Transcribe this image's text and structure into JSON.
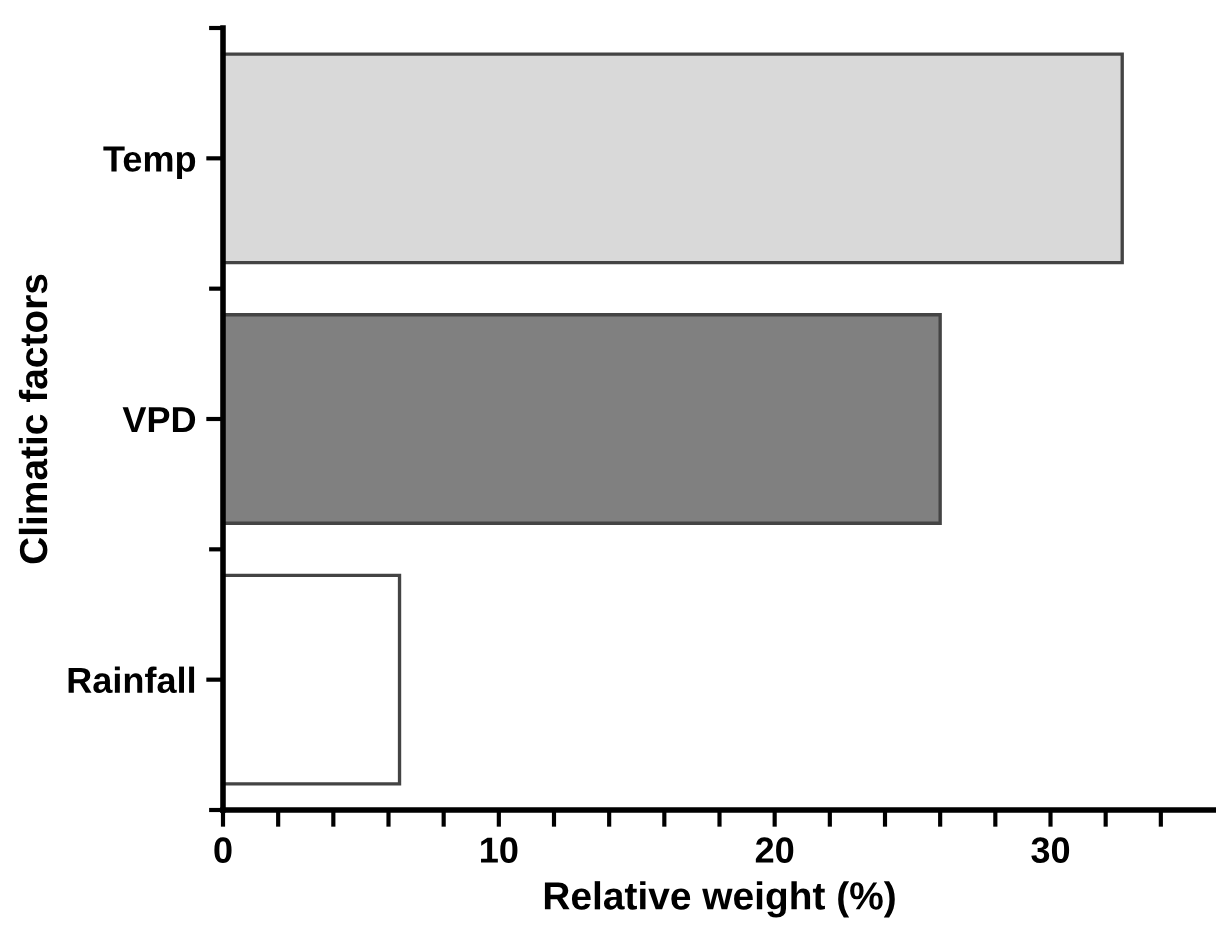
{
  "chart_data": {
    "type": "bar",
    "orientation": "horizontal",
    "xlabel": "Relative weight (%)",
    "ylabel": "Climatic factors",
    "categories": [
      "Temp",
      "VPD",
      "Rainfall"
    ],
    "values": [
      32.6,
      26.0,
      6.4
    ],
    "colors": [
      "#d9d9d9",
      "#808080",
      "#ffffff"
    ],
    "xlim": [
      0,
      36
    ],
    "xticks": [
      0,
      {
        "value": 2,
        "label": null
      },
      {
        "value": 4,
        "label": null
      },
      {
        "value": 6,
        "label": null
      },
      {
        "value": 8,
        "label": null
      },
      10,
      {
        "value": 12,
        "label": null
      },
      {
        "value": 14,
        "label": null
      },
      {
        "value": 16,
        "label": null
      },
      {
        "value": 18,
        "label": null
      },
      20,
      {
        "value": 22,
        "label": null
      },
      {
        "value": 24,
        "label": null
      },
      {
        "value": 26,
        "label": null
      },
      {
        "value": 28,
        "label": null
      },
      30,
      {
        "value": 32,
        "label": null
      },
      {
        "value": 34,
        "label": null
      }
    ],
    "grid": false
  }
}
